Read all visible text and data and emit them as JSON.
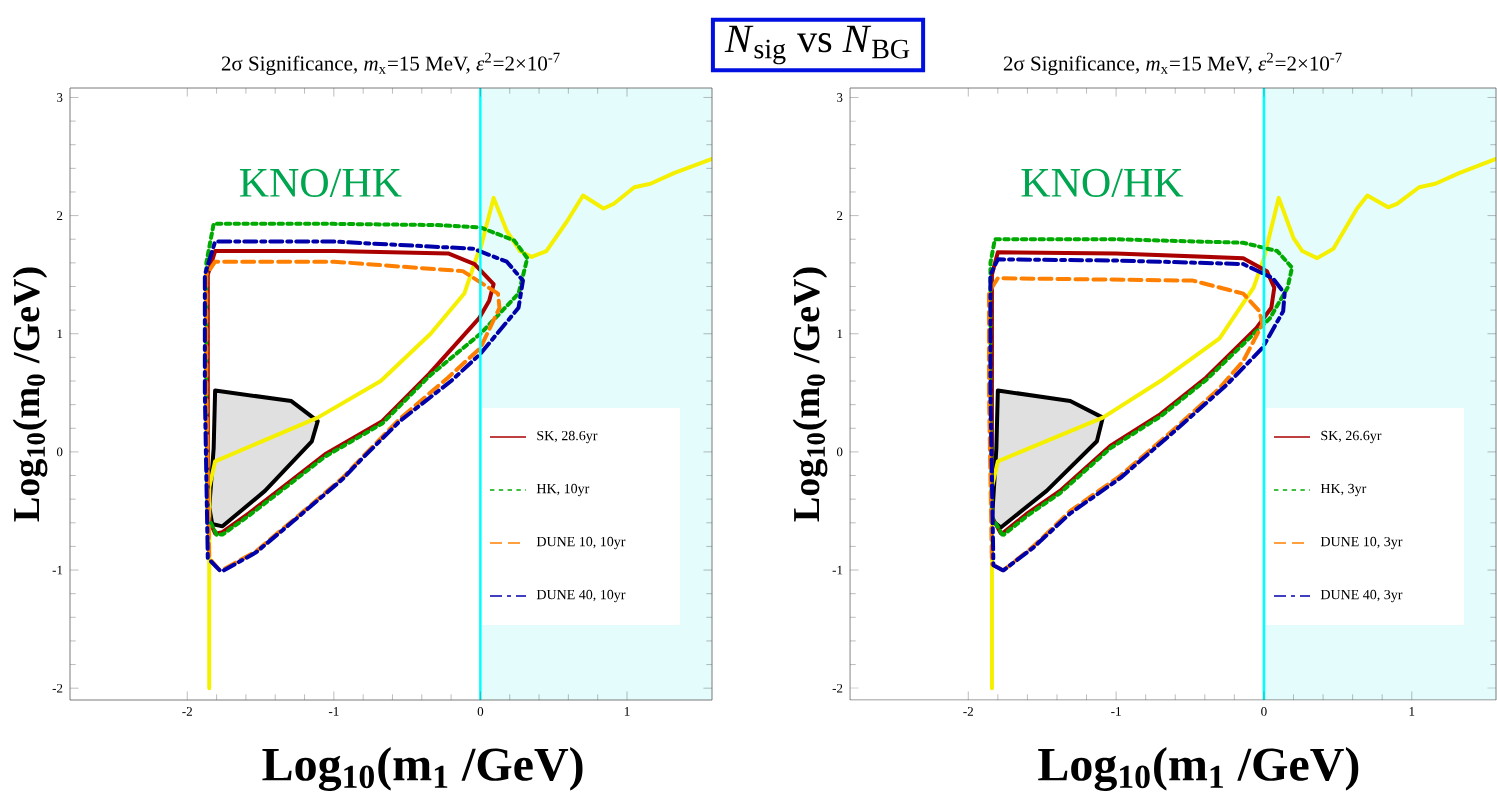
{
  "chart_data": [
    {
      "type": "line",
      "title": "2σ Significance, *m*$_{x}$=15 MeV, *ε*$^{2}$=2×10$^{-7}$",
      "xlabel": "**Log$_{10}$(m$_{1}$ /GeV)**",
      "ylabel": "**Log$_{10}$(m$_{0}$ /GeV)**",
      "xlim": [
        -2.8,
        1.58
      ],
      "ylim": [
        -2.1,
        3.08
      ],
      "xticks": [
        -2,
        -1,
        0,
        1
      ],
      "yticks": [
        -2,
        -1,
        0,
        1,
        2,
        3
      ],
      "legend": "bottom right",
      "annotations": [
        "KNO/HK",
        "*N*$_{sig}$ vs *N*$_{BG}$"
      ],
      "ref_lines": [
        {
          "axis": "x",
          "value": 0,
          "color": "#00ffff"
        }
      ],
      "bands": [
        {
          "axis": "x",
          "from": 0,
          "to": 1.58,
          "color": "#e4fcfc"
        }
      ],
      "series": [
        {
          "type": "line",
          "color": "#f5f000",
          "x": [
            -1.85,
            -1.85,
            -1.81,
            -1.11,
            -0.68,
            -0.34,
            -0.11,
            -0.02,
            0.0,
            0.09,
            0.18,
            0.27,
            0.35,
            0.45,
            0.59,
            0.7,
            0.84,
            0.91,
            1.05,
            1.16,
            1.32,
            1.58
          ],
          "values": [
            -2.0,
            -0.3,
            -0.08,
            0.29,
            0.6,
            1.0,
            1.34,
            1.67,
            1.72,
            2.15,
            1.87,
            1.7,
            1.65,
            1.7,
            1.95,
            2.17,
            2.06,
            2.1,
            2.24,
            2.27,
            2.36,
            2.48
          ]
        },
        {
          "type": "area",
          "color": "#000000",
          "x": [
            -1.81,
            -1.29,
            -1.11,
            -1.15,
            -1.47,
            -1.76,
            -1.83,
            -1.85,
            -1.82,
            -1.81
          ],
          "values": [
            0.52,
            0.43,
            0.26,
            0.09,
            -0.33,
            -0.63,
            -0.61,
            -0.47,
            0.03,
            0.52
          ]
        },
        {
          "name": "SK, 28.6yr",
          "color": "#aa0000",
          "line_style": "solid",
          "x": [
            -1.81,
            -1.86,
            -1.86,
            -1.81,
            -1.0,
            -0.22,
            -0.04,
            0.09,
            0.06,
            -0.01,
            -0.35,
            -0.67,
            -1.06,
            -1.35,
            -1.58,
            -1.76,
            -1.8
          ],
          "values": [
            -0.69,
            -0.55,
            1.5,
            1.7,
            1.7,
            1.68,
            1.59,
            1.42,
            1.28,
            1.13,
            0.66,
            0.26,
            -0.02,
            -0.3,
            -0.52,
            -0.68,
            -0.69
          ]
        },
        {
          "name": "HK, 10yr",
          "color": "#00aa00",
          "line_style": "dotted",
          "x": [
            -1.8,
            -1.86,
            -1.87,
            -1.87,
            -1.82,
            -1.0,
            -0.3,
            0.0,
            0.23,
            0.32,
            0.26,
            0.0,
            -0.35,
            -0.67,
            -1.06,
            -1.35,
            -1.58,
            -1.76,
            -1.79
          ],
          "values": [
            -0.7,
            -0.55,
            0.5,
            1.6,
            1.93,
            1.93,
            1.92,
            1.9,
            1.79,
            1.64,
            1.34,
            1.0,
            0.64,
            0.24,
            -0.04,
            -0.32,
            -0.54,
            -0.7,
            -0.7
          ]
        },
        {
          "name": "DUNE 10, 10yr",
          "color": "#ff8000",
          "line_style": "dashed",
          "x": [
            -1.78,
            -1.85,
            -1.87,
            -1.87,
            -1.81,
            -1.0,
            -0.12,
            0.12,
            0.13,
            0.0,
            -0.22,
            -0.55,
            -0.81,
            -0.94,
            -1.28,
            -1.53,
            -1.76,
            -1.77
          ],
          "values": [
            -1.0,
            -0.9,
            0.5,
            1.5,
            1.61,
            1.61,
            1.53,
            1.34,
            1.22,
            0.88,
            0.63,
            0.28,
            -0.05,
            -0.22,
            -0.58,
            -0.84,
            -1.0,
            -1.0
          ]
        },
        {
          "name": "DUNE 40, 10yr",
          "color": "#0000aa",
          "line_style": "dashdot",
          "x": [
            -1.78,
            -1.86,
            -1.88,
            -1.88,
            -1.81,
            -1.0,
            -0.05,
            0.18,
            0.29,
            0.26,
            0.0,
            -0.2,
            -0.55,
            -0.81,
            -0.94,
            -1.28,
            -1.53,
            -1.76,
            -1.77
          ],
          "values": [
            -1.0,
            -0.9,
            0.5,
            1.5,
            1.78,
            1.78,
            1.72,
            1.61,
            1.45,
            1.22,
            0.83,
            0.6,
            0.26,
            -0.06,
            -0.23,
            -0.59,
            -0.85,
            -1.01,
            -1.0
          ]
        }
      ]
    },
    {
      "type": "line",
      "title": "2σ Significance, *m*$_{x}$=15 MeV, *ε*$^{2}$=2×10$^{-7}$",
      "xlabel": "**Log$_{10}$(m$_{1}$ /GeV)**",
      "ylabel": "**Log$_{10}$(m$_{0}$ /GeV)**",
      "xlim": [
        -2.8,
        1.57
      ],
      "ylim": [
        -2.1,
        3.08
      ],
      "xticks": [
        -2,
        -1,
        0,
        1
      ],
      "yticks": [
        -2,
        -1,
        0,
        1,
        2,
        3
      ],
      "legend": "bottom right",
      "annotations": [
        "KNO/HK"
      ],
      "ref_lines": [
        {
          "axis": "x",
          "value": 0,
          "color": "#00ffff"
        }
      ],
      "bands": [
        {
          "axis": "x",
          "from": 0,
          "to": 1.57,
          "color": "#e4fcfc"
        }
      ],
      "series": [
        {
          "type": "line",
          "color": "#f5f000",
          "x": [
            -1.84,
            -1.84,
            -1.8,
            -1.09,
            -0.7,
            -0.3,
            -0.07,
            0.0,
            0.1,
            0.2,
            0.26,
            0.36,
            0.47,
            0.63,
            0.7,
            0.84,
            0.9,
            1.05,
            1.16,
            1.32,
            1.57
          ],
          "values": [
            -2.0,
            -0.3,
            -0.08,
            0.29,
            0.6,
            0.96,
            1.39,
            1.64,
            2.15,
            1.81,
            1.7,
            1.64,
            1.72,
            2.06,
            2.17,
            2.07,
            2.1,
            2.24,
            2.27,
            2.36,
            2.48
          ]
        },
        {
          "type": "area",
          "color": "#000000",
          "x": [
            -1.8,
            -1.31,
            -1.09,
            -1.13,
            -1.47,
            -1.78,
            -1.84,
            -1.81,
            -1.8
          ],
          "values": [
            0.52,
            0.43,
            0.29,
            0.09,
            -0.33,
            -0.64,
            -0.58,
            0.03,
            0.52
          ]
        },
        {
          "name": "SK, 26.6yr",
          "color": "#aa0000",
          "line_style": "solid",
          "x": [
            -1.78,
            -1.84,
            -1.84,
            -1.8,
            -1.0,
            -0.14,
            0.02,
            0.07,
            0.05,
            -0.05,
            -0.39,
            -0.7,
            -1.04,
            -1.38,
            -1.6,
            -1.76,
            -1.77
          ],
          "values": [
            -0.69,
            -0.55,
            1.5,
            1.69,
            1.68,
            1.64,
            1.53,
            1.39,
            1.22,
            1.05,
            0.63,
            0.32,
            0.05,
            -0.33,
            -0.52,
            -0.68,
            -0.69
          ]
        },
        {
          "name": "HK, 3yr",
          "color": "#00aa00",
          "line_style": "dotted",
          "x": [
            -1.77,
            -1.84,
            -1.85,
            -1.85,
            -1.82,
            -1.0,
            -0.14,
            0.09,
            0.19,
            0.16,
            0.04,
            -0.39,
            -0.7,
            -1.04,
            -1.38,
            -1.6,
            -1.76,
            -1.76
          ],
          "values": [
            -0.7,
            -0.55,
            0.5,
            1.6,
            1.8,
            1.8,
            1.77,
            1.7,
            1.56,
            1.39,
            1.13,
            0.61,
            0.3,
            0.03,
            -0.35,
            -0.54,
            -0.7,
            -0.7
          ]
        },
        {
          "name": "DUNE 10, 3yr",
          "color": "#ff8000",
          "line_style": "dashed",
          "x": [
            -1.77,
            -1.84,
            -1.86,
            -1.86,
            -1.8,
            -0.48,
            -0.14,
            -0.03,
            -0.01,
            -0.14,
            -0.3,
            -0.6,
            -0.97,
            -1.31,
            -1.56,
            -1.76
          ],
          "values": [
            -1.0,
            -0.95,
            0.5,
            1.35,
            1.47,
            1.45,
            1.34,
            1.19,
            1.08,
            0.77,
            0.54,
            0.2,
            -0.2,
            -0.5,
            -0.8,
            -1.0
          ]
        },
        {
          "name": "DUNE 40, 3yr",
          "color": "#0000aa",
          "line_style": "dashdot",
          "x": [
            -1.77,
            -1.83,
            -1.85,
            -1.85,
            -1.8,
            -1.0,
            -0.14,
            0.06,
            0.14,
            0.13,
            -0.01,
            -0.25,
            -0.6,
            -0.97,
            -1.31,
            -1.56,
            -1.76
          ],
          "values": [
            -1.0,
            -0.96,
            0.5,
            1.5,
            1.63,
            1.62,
            1.59,
            1.47,
            1.34,
            1.19,
            0.88,
            0.57,
            0.18,
            -0.22,
            -0.52,
            -0.81,
            -1.0
          ]
        }
      ]
    }
  ]
}
